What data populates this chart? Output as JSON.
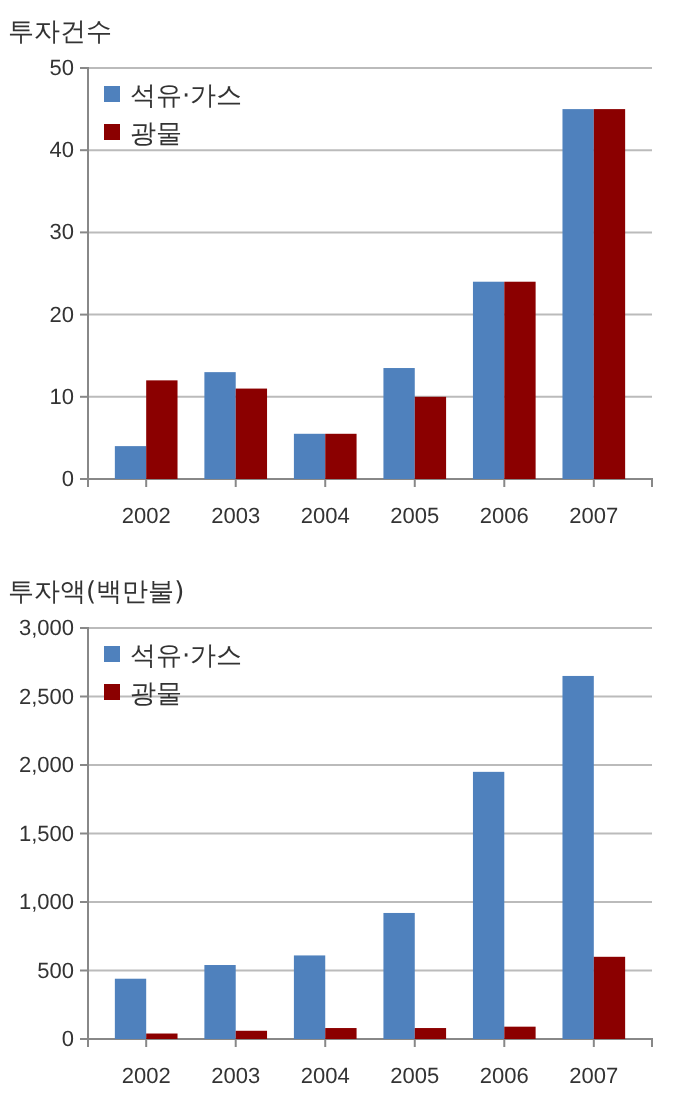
{
  "chart_data": [
    {
      "type": "bar",
      "title": "투자건수",
      "categories": [
        "2002",
        "2003",
        "2004",
        "2005",
        "2006",
        "2007"
      ],
      "series": [
        {
          "name": "석유·가스",
          "color": "#4f81bd",
          "values": [
            4,
            13,
            5.5,
            13.5,
            24,
            45
          ]
        },
        {
          "name": "광물",
          "color": "#8b0000",
          "values": [
            12,
            11,
            5.5,
            10,
            24,
            45
          ]
        }
      ],
      "ylim": [
        0,
        50
      ],
      "yticks": [
        0,
        10,
        20,
        30,
        40,
        50
      ],
      "grid": "y",
      "legend": "top left"
    },
    {
      "type": "bar",
      "title": "투자액(백만불)",
      "categories": [
        "2002",
        "2003",
        "2004",
        "2005",
        "2006",
        "2007"
      ],
      "series": [
        {
          "name": "석유·가스",
          "color": "#4f81bd",
          "values": [
            440,
            540,
            610,
            920,
            1950,
            2650
          ]
        },
        {
          "name": "광물",
          "color": "#8b0000",
          "values": [
            40,
            60,
            80,
            80,
            90,
            600
          ]
        }
      ],
      "ylim": [
        0,
        3000
      ],
      "yticks": [
        0,
        {
          "value": 500,
          "label": "500"
        },
        {
          "value": 1000,
          "label": "1,000"
        },
        {
          "value": 1500,
          "label": "1,500"
        },
        {
          "value": 2000,
          "label": "2,000"
        },
        {
          "value": 2500,
          "label": "2,500"
        },
        {
          "value": 3000,
          "label": "3,000"
        }
      ],
      "grid": "y",
      "legend": "top left"
    }
  ]
}
